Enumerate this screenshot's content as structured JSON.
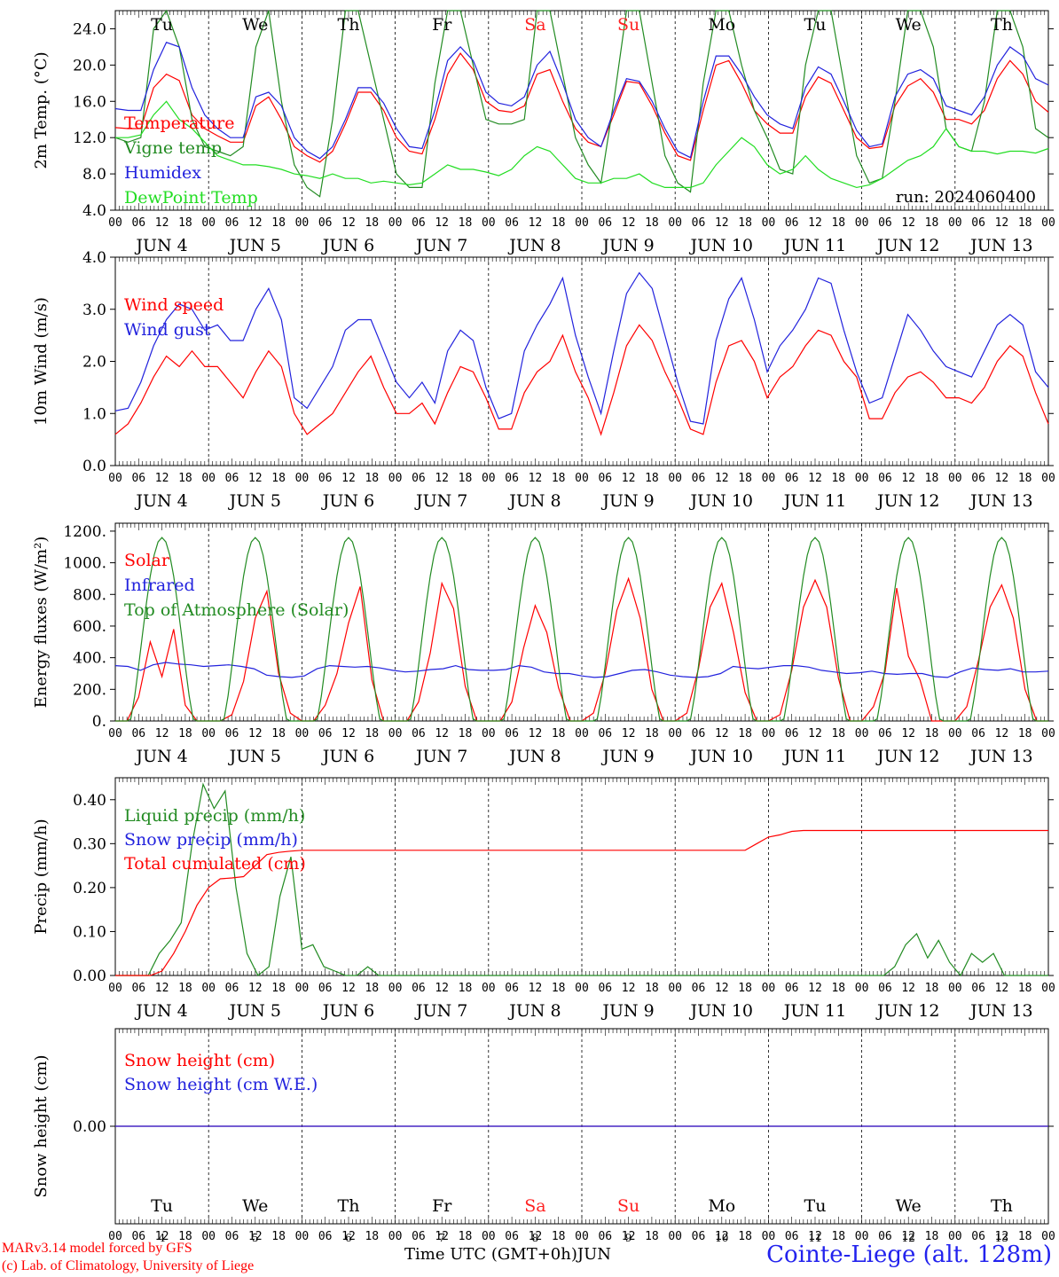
{
  "run_label": "run: 2024060400",
  "x_axis": {
    "hour_labels": [
      "00",
      "06",
      "12",
      "18"
    ],
    "end_label": "00",
    "month": "JUN",
    "days": [
      "4",
      "5",
      "6",
      "7",
      "8",
      "9",
      "10",
      "11",
      "12",
      "13"
    ],
    "weekdays": [
      "Tu",
      "We",
      "Th",
      "Fr",
      "Sa",
      "Su",
      "Mo",
      "Tu",
      "We",
      "Th"
    ],
    "weekend_flags": [
      false,
      false,
      false,
      false,
      true,
      true,
      false,
      false,
      false,
      false
    ],
    "weekday_color": "#000000",
    "weekend_color": "#ff2222",
    "title": "Time UTC (GMT+0h)",
    "title_unit": "JUN"
  },
  "footer": {
    "model_line": "MARv3.14 model forced by GFS",
    "credit_line": "(c) Lab. of Climatology, University of Liege",
    "station": "Cointe-Liege (alt. 128m)"
  },
  "chart_data": [
    {
      "type": "line",
      "ylabel": "2m Temp. (°C)",
      "ylim": [
        4,
        26
      ],
      "ytick_labels": [
        "4.0",
        "8.0",
        "12.0",
        "16.0",
        "20.0",
        "24.0"
      ],
      "ytick_values": [
        4,
        8,
        12,
        16,
        20,
        24
      ],
      "x": "hours since 2024-06-04 00 UTC, every 3 h (0–240)",
      "series": [
        {
          "name": "Temperature",
          "color": "#ff0000",
          "values": [
            13.1,
            13.0,
            13.0,
            17.5,
            19.0,
            18.3,
            14.5,
            13.0,
            12.2,
            11.5,
            11.5,
            15.5,
            16.5,
            14.0,
            11.0,
            10.0,
            9.3,
            10.5,
            13.5,
            17.0,
            17.0,
            15.0,
            12.0,
            10.5,
            10.2,
            14.0,
            19.0,
            21.3,
            19.5,
            16.0,
            15.0,
            14.8,
            15.5,
            19.0,
            19.5,
            16.0,
            13.0,
            11.5,
            11.0,
            14.5,
            18.2,
            18.0,
            15.5,
            12.5,
            10.0,
            9.5,
            15.0,
            20.0,
            20.5,
            18.0,
            15.0,
            13.5,
            12.5,
            12.5,
            16.5,
            18.7,
            18.0,
            15.0,
            12.0,
            10.8,
            11.0,
            15.5,
            17.7,
            18.5,
            17.0,
            14.0,
            14.0,
            13.5,
            15.0,
            18.5,
            20.5,
            19.0,
            16.0,
            14.8
          ]
        },
        {
          "name": "Vigne temp",
          "color": "#228b22",
          "values": [
            12.0,
            11.5,
            12.0,
            24.0,
            26.0,
            22.0,
            14.0,
            11.0,
            10.5,
            10.0,
            11.0,
            22.0,
            26.0,
            16.0,
            9.0,
            6.5,
            5.5,
            14.0,
            26.0,
            26.0,
            20.0,
            14.0,
            8.0,
            6.5,
            6.5,
            18.0,
            26.0,
            26.0,
            20.0,
            14.0,
            13.5,
            13.5,
            14.0,
            26.0,
            26.0,
            19.0,
            12.0,
            9.0,
            7.0,
            16.0,
            26.0,
            26.0,
            18.0,
            10.0,
            7.0,
            6.0,
            18.0,
            26.0,
            26.0,
            20.0,
            15.0,
            12.0,
            8.5,
            8.0,
            20.0,
            26.0,
            26.0,
            18.0,
            10.0,
            7.0,
            7.5,
            16.0,
            26.0,
            26.0,
            22.0,
            13.0,
            11.0,
            10.5,
            16.0,
            26.0,
            26.0,
            22.0,
            13.0,
            12.0
          ]
        },
        {
          "name": "Humidex",
          "color": "#2222dd",
          "values": [
            15.2,
            15.0,
            15.0,
            19.5,
            22.5,
            22.0,
            17.5,
            14.5,
            13.0,
            12.0,
            12.0,
            16.5,
            17.0,
            15.5,
            12.0,
            10.5,
            9.7,
            11.0,
            14.0,
            17.5,
            17.5,
            15.8,
            13.0,
            11.0,
            10.8,
            15.0,
            20.5,
            22.0,
            20.5,
            17.0,
            15.8,
            15.5,
            16.5,
            20.0,
            21.5,
            18.0,
            14.0,
            12.0,
            11.0,
            15.0,
            18.5,
            18.2,
            16.0,
            13.0,
            10.5,
            9.8,
            16.0,
            21.0,
            21.0,
            19.0,
            16.5,
            14.5,
            13.5,
            13.0,
            17.5,
            19.8,
            19.0,
            16.0,
            12.8,
            11.0,
            11.3,
            16.5,
            19.0,
            19.5,
            18.5,
            15.5,
            15.0,
            14.5,
            16.5,
            20.0,
            22.0,
            21.0,
            18.5,
            17.8
          ]
        },
        {
          "name": "DewPoint Temp",
          "color": "#22dd22",
          "values": [
            12.0,
            12.0,
            12.3,
            14.5,
            16.0,
            14.0,
            13.0,
            11.5,
            10.0,
            9.5,
            9.0,
            9.0,
            8.8,
            8.5,
            8.0,
            7.8,
            7.5,
            8.0,
            7.5,
            7.5,
            7.0,
            7.2,
            7.0,
            6.8,
            7.0,
            8.0,
            9.0,
            8.5,
            8.5,
            8.2,
            7.8,
            8.5,
            10.0,
            11.0,
            10.5,
            9.0,
            7.5,
            7.0,
            7.0,
            7.5,
            7.5,
            8.0,
            7.0,
            6.5,
            6.5,
            6.5,
            7.0,
            9.0,
            10.5,
            12.0,
            11.0,
            9.0,
            8.0,
            8.5,
            10.0,
            8.5,
            7.5,
            7.0,
            6.5,
            6.8,
            7.5,
            8.5,
            9.5,
            10.0,
            11.0,
            13.0,
            11.0,
            10.5,
            10.5,
            10.2,
            10.5,
            10.5,
            10.3,
            10.8
          ]
        }
      ]
    },
    {
      "type": "line",
      "ylabel": "10m Wind (m/s)",
      "ylim": [
        0,
        4
      ],
      "ytick_labels": [
        "0.0",
        "1.0",
        "2.0",
        "3.0",
        "4.0"
      ],
      "ytick_values": [
        0,
        1,
        2,
        3,
        4
      ],
      "series": [
        {
          "name": "Wind speed",
          "color": "#ff0000",
          "values": [
            0.6,
            0.8,
            1.2,
            1.7,
            2.1,
            1.9,
            2.2,
            1.9,
            1.9,
            1.6,
            1.3,
            1.8,
            2.2,
            1.9,
            1.0,
            0.6,
            0.8,
            1.0,
            1.4,
            1.8,
            2.1,
            1.5,
            1.0,
            1.0,
            1.2,
            0.8,
            1.4,
            1.9,
            1.8,
            1.3,
            0.7,
            0.7,
            1.4,
            1.8,
            2.0,
            2.5,
            1.8,
            1.3,
            0.6,
            1.4,
            2.3,
            2.7,
            2.4,
            1.8,
            1.3,
            0.7,
            0.6,
            1.6,
            2.3,
            2.4,
            2.0,
            1.3,
            1.7,
            1.9,
            2.3,
            2.6,
            2.5,
            2.0,
            1.7,
            0.9,
            0.9,
            1.4,
            1.7,
            1.8,
            1.6,
            1.3,
            1.3,
            1.2,
            1.5,
            2.0,
            2.3,
            2.1,
            1.4,
            0.8
          ]
        },
        {
          "name": "Wind gust",
          "color": "#2222dd",
          "values": [
            1.05,
            1.1,
            1.6,
            2.3,
            2.8,
            3.1,
            3.0,
            2.6,
            2.7,
            2.4,
            2.4,
            3.0,
            3.4,
            2.8,
            1.3,
            1.1,
            1.5,
            1.9,
            2.6,
            2.8,
            2.8,
            2.2,
            1.6,
            1.3,
            1.6,
            1.2,
            2.2,
            2.6,
            2.4,
            1.5,
            0.9,
            1.0,
            2.2,
            2.7,
            3.1,
            3.6,
            2.5,
            1.7,
            1.0,
            2.2,
            3.3,
            3.7,
            3.4,
            2.5,
            1.6,
            0.85,
            0.8,
            2.4,
            3.2,
            3.6,
            2.8,
            1.8,
            2.3,
            2.6,
            3.0,
            3.6,
            3.5,
            2.6,
            1.8,
            1.2,
            1.3,
            2.1,
            2.9,
            2.6,
            2.2,
            1.9,
            1.8,
            1.7,
            2.2,
            2.7,
            2.9,
            2.7,
            1.8,
            1.5
          ]
        }
      ]
    },
    {
      "type": "line",
      "ylabel": "Energy fluxes (W/m²)",
      "ylim": [
        0,
        1250
      ],
      "ytick_labels": [
        "0.",
        "200.",
        "400.",
        "600.",
        "800.",
        "1000.",
        "1200."
      ],
      "ytick_values": [
        0,
        200,
        400,
        600,
        800,
        1000,
        1200
      ],
      "series": [
        {
          "name": "Solar",
          "color": "#ff0000",
          "values": [
            0,
            0,
            150,
            500,
            280,
            580,
            100,
            0,
            0,
            0,
            40,
            250,
            650,
            820,
            300,
            50,
            0,
            0,
            100,
            300,
            620,
            850,
            260,
            0,
            0,
            0,
            120,
            430,
            870,
            710,
            220,
            0,
            0,
            0,
            120,
            460,
            730,
            560,
            210,
            0,
            0,
            50,
            300,
            700,
            900,
            650,
            200,
            0,
            0,
            50,
            330,
            720,
            870,
            560,
            180,
            0,
            0,
            40,
            320,
            720,
            890,
            720,
            270,
            0,
            0,
            90,
            310,
            840,
            410,
            260,
            0,
            0,
            0,
            90,
            380,
            720,
            860,
            650,
            200,
            0,
            0
          ]
        },
        {
          "name": "Infrared",
          "color": "#2222dd",
          "values": [
            350,
            345,
            320,
            355,
            370,
            360,
            355,
            345,
            350,
            355,
            345,
            330,
            290,
            280,
            275,
            285,
            330,
            350,
            345,
            340,
            345,
            335,
            320,
            310,
            315,
            325,
            330,
            350,
            325,
            320,
            320,
            325,
            350,
            340,
            310,
            300,
            300,
            285,
            275,
            280,
            300,
            320,
            325,
            310,
            290,
            280,
            275,
            280,
            300,
            345,
            335,
            330,
            340,
            350,
            350,
            340,
            320,
            310,
            300,
            305,
            315,
            300,
            295,
            300,
            300,
            280,
            275,
            310,
            335,
            325,
            320,
            330,
            310,
            310,
            315
          ]
        },
        {
          "name": "Top of Atmosphere (Solar)",
          "color": "#228b22",
          "values": []
        }
      ]
    },
    {
      "type": "line",
      "ylabel": "Precip (mm/h)",
      "ylim": [
        0,
        0.45
      ],
      "ytick_labels": [
        "0.00",
        "0.10",
        "0.20",
        "0.30",
        "0.40"
      ],
      "ytick_values": [
        0,
        0.1,
        0.2,
        0.3,
        0.4
      ],
      "series": [
        {
          "name": "Liquid precip (mm/h)",
          "color": "#228b22",
          "values": [
            0,
            0,
            0,
            0,
            0.05,
            0.08,
            0.12,
            0.3,
            0.435,
            0.38,
            0.42,
            0.2,
            0.05,
            0,
            0.02,
            0.18,
            0.27,
            0.06,
            0.07,
            0.02,
            0.01,
            0,
            0,
            0.02,
            0,
            0,
            0,
            0,
            0,
            0,
            0,
            0,
            0,
            0,
            0,
            0,
            0,
            0,
            0,
            0,
            0,
            0,
            0,
            0,
            0,
            0,
            0,
            0,
            0,
            0,
            0,
            0,
            0,
            0,
            0,
            0,
            0,
            0,
            0,
            0,
            0,
            0,
            0,
            0,
            0,
            0,
            0,
            0,
            0,
            0,
            0,
            0.02,
            0.07,
            0.095,
            0.04,
            0.08,
            0.03,
            0,
            0.05,
            0.03,
            0.05,
            0,
            0,
            0,
            0,
            0
          ]
        },
        {
          "name": "Snow precip (mm/h)",
          "color": "#2222dd",
          "values": []
        },
        {
          "name": "Total cumulated (cm)",
          "color": "#ff0000",
          "values": [
            0,
            0,
            0,
            0,
            0.01,
            0.05,
            0.1,
            0.16,
            0.2,
            0.22,
            0.222,
            0.225,
            0.25,
            0.275,
            0.28,
            0.283,
            0.285,
            0.285,
            0.285,
            0.285,
            0.285,
            0.285,
            0.285,
            0.285,
            0.285,
            0.285,
            0.285,
            0.285,
            0.285,
            0.285,
            0.285,
            0.285,
            0.285,
            0.285,
            0.285,
            0.285,
            0.285,
            0.285,
            0.285,
            0.285,
            0.285,
            0.285,
            0.285,
            0.285,
            0.285,
            0.285,
            0.285,
            0.285,
            0.285,
            0.285,
            0.285,
            0.285,
            0.285,
            0.285,
            0.285,
            0.3,
            0.315,
            0.32,
            0.328,
            0.33,
            0.33,
            0.33,
            0.33,
            0.33,
            0.33,
            0.33,
            0.33,
            0.33,
            0.33,
            0.33,
            0.33,
            0.33,
            0.33,
            0.33,
            0.33,
            0.33,
            0.33,
            0.33,
            0.33,
            0.33,
            0.33
          ]
        }
      ]
    },
    {
      "type": "line",
      "ylabel": "Snow height (cm)",
      "ylim": [
        -1,
        1
      ],
      "ytick_labels": [
        "0.00"
      ],
      "ytick_values": [
        0
      ],
      "series": [
        {
          "name": "Snow height (cm)",
          "color": "#ff0000",
          "values": [
            0,
            0
          ]
        },
        {
          "name": "Snow height (cm W.E.)",
          "color": "#2222dd",
          "values": [
            0,
            0
          ]
        }
      ]
    }
  ]
}
